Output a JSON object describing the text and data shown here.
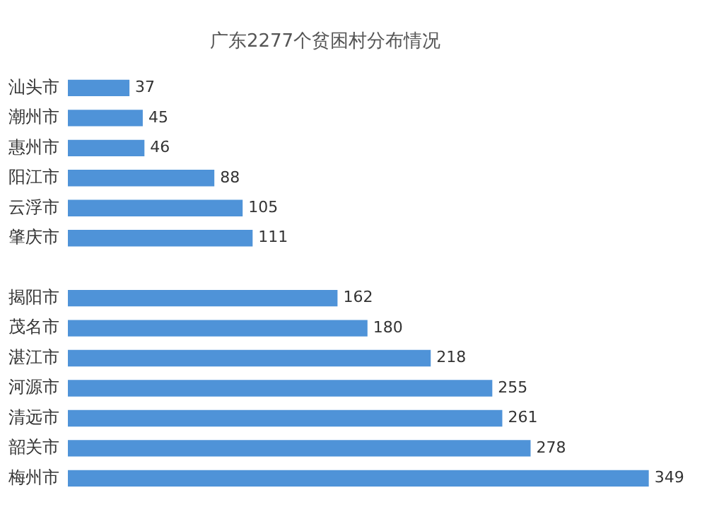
{
  "chart_data": {
    "type": "bar",
    "orientation": "horizontal",
    "title": "广东2277个贫困村分布情况",
    "categories": [
      "汕头市",
      "潮州市",
      "惠州市",
      "阳江市",
      "云浮市",
      "肇庆市",
      null,
      "揭阳市",
      "茂名市",
      "湛江市",
      "河源市",
      "清远市",
      "韶关市",
      "梅州市"
    ],
    "values": [
      37,
      45,
      46,
      88,
      105,
      111,
      null,
      162,
      180,
      218,
      255,
      261,
      278,
      349
    ],
    "color": "#4f93d8",
    "data_labels": true,
    "grid": false,
    "legend": false
  }
}
